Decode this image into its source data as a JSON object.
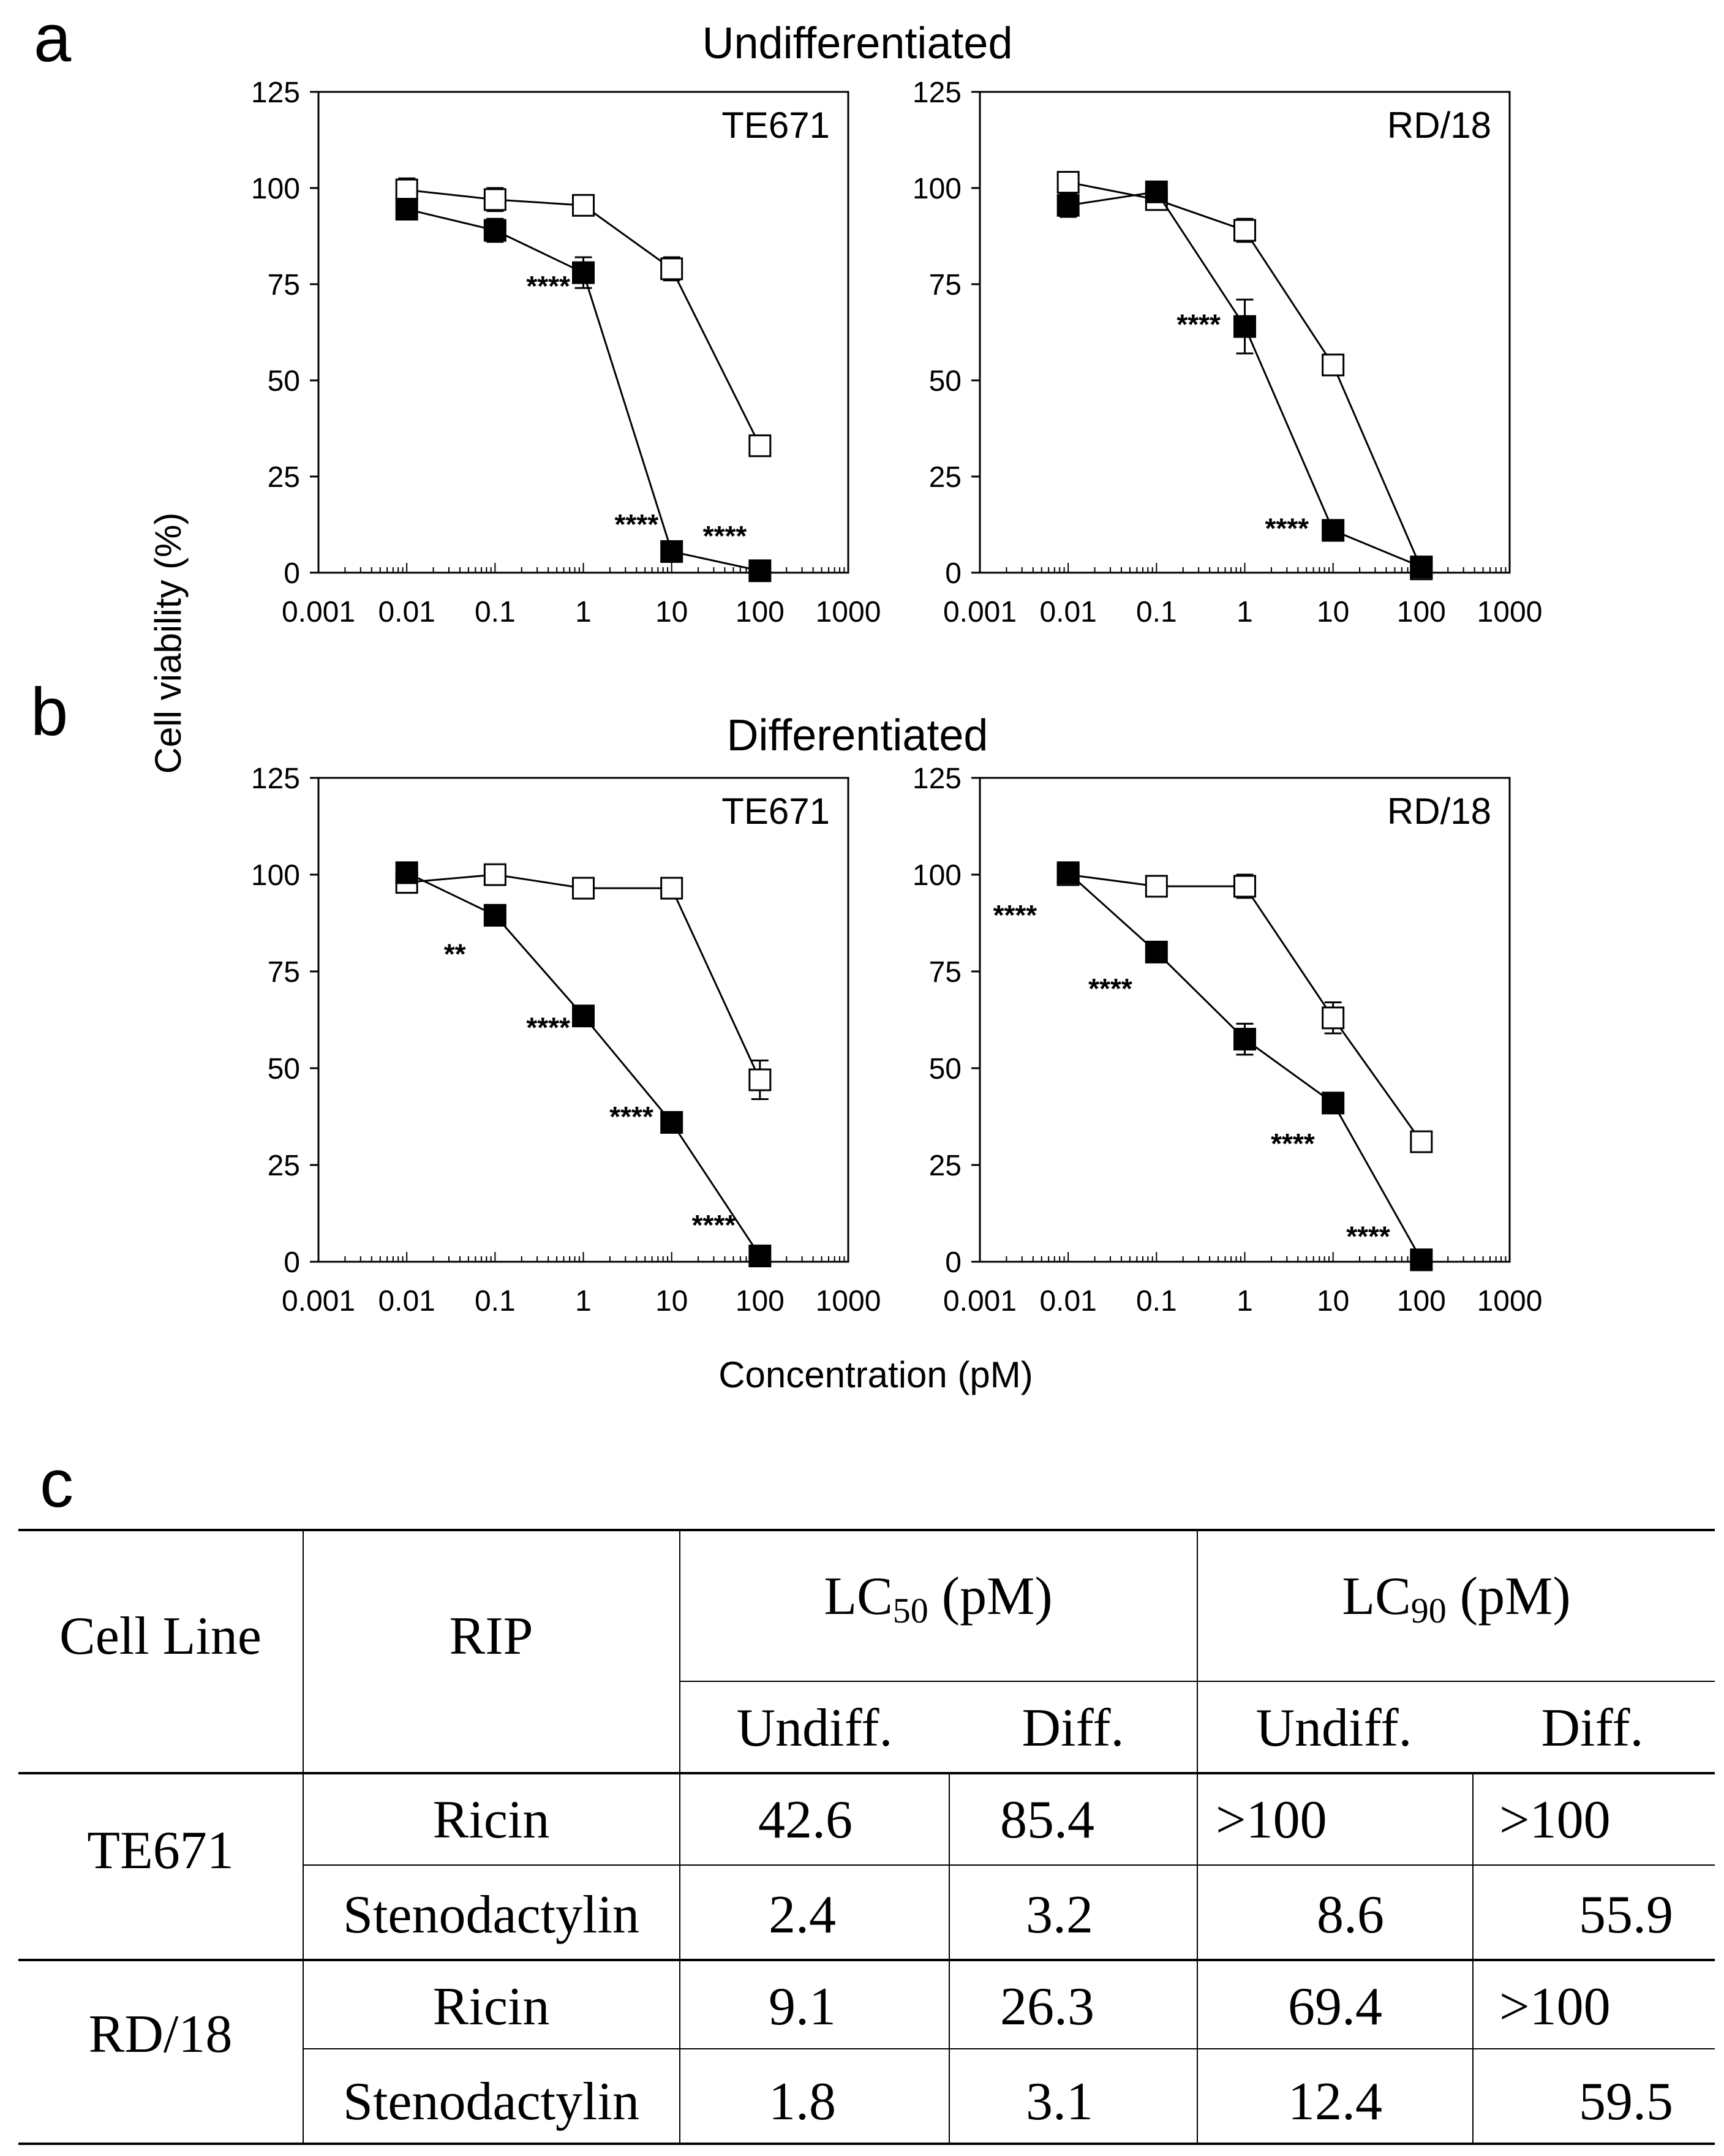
{
  "panel_labels": {
    "a": "a",
    "b": "b",
    "c": "c"
  },
  "row_titles": {
    "a": "Undifferentiated",
    "b": "Differentiated"
  },
  "shared_ylabel": "Cell viability (%)",
  "shared_xlabel": "Concentration (pM)",
  "colors": {
    "axis": "#000000",
    "filled": "#000000",
    "open": "#ffffff"
  },
  "chart_data": [
    {
      "id": "a-te671",
      "type": "line",
      "title": "TE671",
      "xscale": "log",
      "xlim": [
        0.001,
        1000
      ],
      "ylim": [
        0,
        125
      ],
      "x_ticks": [
        "0.001",
        "0.01",
        "0.1",
        "1",
        "10",
        "100",
        "1000"
      ],
      "y_ticks": [
        "0",
        "25",
        "50",
        "75",
        "100",
        "125"
      ],
      "series": [
        {
          "name": "open squares",
          "marker": "open-square",
          "x": [
            0.01,
            0.1,
            1,
            10,
            100
          ],
          "values": [
            99.5,
            97,
            95.5,
            79,
            33
          ],
          "err": [
            3,
            3,
            0,
            3,
            0
          ]
        },
        {
          "name": "filled squares",
          "marker": "filled-square",
          "x": [
            0.01,
            0.1,
            1,
            10,
            100
          ],
          "values": [
            94.5,
            89,
            78,
            5.5,
            0.5
          ],
          "err": [
            0,
            3,
            4,
            0,
            0
          ]
        }
      ],
      "annotations": [
        {
          "text": "****",
          "x": 0.4,
          "y": 72
        },
        {
          "text": "****",
          "x": 4,
          "y": 10
        },
        {
          "text": "****",
          "x": 40,
          "y": 7
        }
      ]
    },
    {
      "id": "a-rd18",
      "type": "line",
      "title": "RD/18",
      "xscale": "log",
      "xlim": [
        0.001,
        1000
      ],
      "ylim": [
        0,
        125
      ],
      "x_ticks": [
        "0.001",
        "0.01",
        "0.1",
        "1",
        "10",
        "100",
        "1000"
      ],
      "y_ticks": [
        "0",
        "25",
        "50",
        "75",
        "100",
        "125"
      ],
      "series": [
        {
          "name": "open squares",
          "marker": "open-square",
          "x": [
            0.01,
            0.1,
            1,
            10,
            100
          ],
          "values": [
            101.5,
            97,
            89,
            54,
            1
          ],
          "err": [
            0,
            2,
            3,
            0,
            0
          ]
        },
        {
          "name": "filled squares",
          "marker": "filled-square",
          "x": [
            0.01,
            0.1,
            1,
            10,
            100
          ],
          "values": [
            95.5,
            99,
            64,
            11,
            1.5
          ],
          "err": [
            3,
            0,
            7,
            0,
            0
          ]
        }
      ],
      "annotations": [
        {
          "text": "****",
          "x": 0.3,
          "y": 62
        },
        {
          "text": "****",
          "x": 3,
          "y": 9
        }
      ]
    },
    {
      "id": "b-te671",
      "type": "line",
      "title": "TE671",
      "xscale": "log",
      "xlim": [
        0.001,
        1000
      ],
      "ylim": [
        0,
        125
      ],
      "x_ticks": [
        "0.001",
        "0.01",
        "0.1",
        "1",
        "10",
        "100",
        "1000"
      ],
      "y_ticks": [
        "0",
        "25",
        "50",
        "75",
        "100",
        "125"
      ],
      "series": [
        {
          "name": "open squares",
          "marker": "open-square",
          "x": [
            0.01,
            0.1,
            1,
            10,
            100
          ],
          "values": [
            98,
            100,
            96.5,
            96.5,
            47
          ],
          "err": [
            0,
            0,
            0,
            0,
            5
          ]
        },
        {
          "name": "filled squares",
          "marker": "filled-square",
          "x": [
            0.01,
            0.1,
            1,
            10,
            100
          ],
          "values": [
            100.5,
            89.5,
            63.5,
            36,
            1.5
          ],
          "err": [
            0,
            0,
            0,
            0,
            0
          ]
        }
      ],
      "annotations": [
        {
          "text": "**",
          "x": 0.035,
          "y": 77
        },
        {
          "text": "****",
          "x": 0.4,
          "y": 58
        },
        {
          "text": "****",
          "x": 3.5,
          "y": 35
        },
        {
          "text": "****",
          "x": 30,
          "y": 7
        }
      ]
    },
    {
      "id": "b-rd18",
      "type": "line",
      "title": "RD/18",
      "xscale": "log",
      "xlim": [
        0.001,
        1000
      ],
      "ylim": [
        0,
        125
      ],
      "x_ticks": [
        "0.001",
        "0.01",
        "0.1",
        "1",
        "10",
        "100",
        "1000"
      ],
      "y_ticks": [
        "0",
        "25",
        "50",
        "75",
        "100",
        "125"
      ],
      "series": [
        {
          "name": "open squares",
          "marker": "open-square",
          "x": [
            0.01,
            0.1,
            1,
            10,
            100
          ],
          "values": [
            100,
            97,
            97,
            63,
            31
          ],
          "err": [
            0,
            0,
            3,
            4,
            0
          ]
        },
        {
          "name": "filled squares",
          "marker": "filled-square",
          "x": [
            0.01,
            0.1,
            1,
            10,
            100
          ],
          "values": [
            100.5,
            80,
            57.5,
            41,
            0.5
          ],
          "err": [
            0,
            0,
            4,
            0,
            0
          ]
        }
      ],
      "annotations": [
        {
          "text": "****",
          "x": 0.0025,
          "y": 87
        },
        {
          "text": "****",
          "x": 0.03,
          "y": 68
        },
        {
          "text": "****",
          "x": 3.5,
          "y": 28
        },
        {
          "text": "****",
          "x": 25,
          "y": 4
        }
      ]
    }
  ],
  "table": {
    "cell_line_header": "Cell Line",
    "rip_header": "RIP",
    "lc50_header": "LC",
    "lc50_sub": "50",
    "lc90_header": "LC",
    "lc90_sub": "90",
    "unit": " (pM)",
    "sub_headers": [
      "Undiff.",
      "Diff.",
      "Undiff.",
      "Diff."
    ],
    "groups": [
      {
        "cell_line": "TE671",
        "rows": [
          {
            "rip": "Ricin",
            "values": [
              "42.6",
              "85.4",
              ">100",
              ">100"
            ]
          },
          {
            "rip": "Stenodactylin",
            "values": [
              "2.4",
              "3.2",
              "8.6",
              "55.9"
            ]
          }
        ]
      },
      {
        "cell_line": "RD/18",
        "rows": [
          {
            "rip": "Ricin",
            "values": [
              "9.1",
              "26.3",
              "69.4",
              ">100"
            ]
          },
          {
            "rip": "Stenodactylin",
            "values": [
              "1.8",
              "3.1",
              "12.4",
              "59.5"
            ]
          }
        ]
      }
    ]
  }
}
